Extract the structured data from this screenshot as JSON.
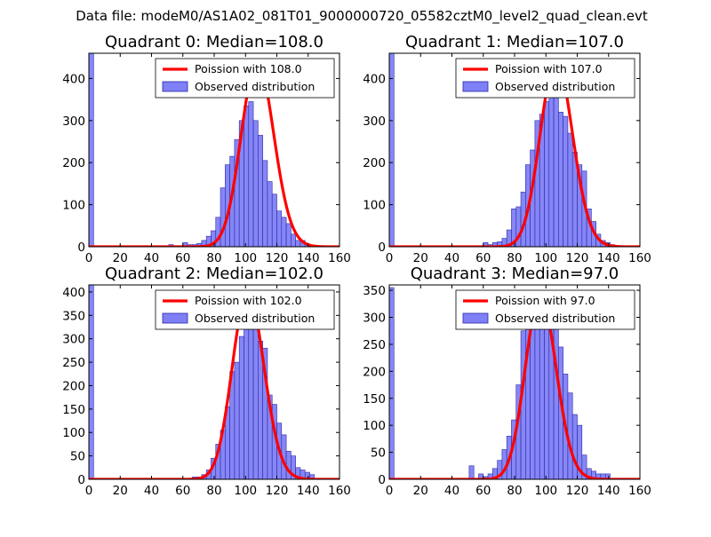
{
  "figure_title": "Data file: modeM0/AS1A02_081T01_9000000720_05582cztM0_level2_quad_clean.evt",
  "colors": {
    "poisson_line": "#ff0000",
    "bar_fill": "#7f7ff6",
    "bar_edge": "#2a2aa8"
  },
  "chart_data": [
    {
      "type": "bar",
      "title": "Quadrant 0: Median=108.0",
      "xlim": [
        0,
        160
      ],
      "ylim": [
        0,
        460
      ],
      "xticks": [
        0,
        20,
        40,
        60,
        80,
        100,
        120,
        140,
        160
      ],
      "yticks": [
        0,
        100,
        200,
        300,
        400
      ],
      "legend": {
        "position": "top-right",
        "line_label": "Poission with 108.0",
        "bar_label": "Observed distribution"
      },
      "poisson_mean": 108.0,
      "poisson_peak": 440,
      "bin_edges": [
        0,
        3,
        6,
        9,
        12,
        15,
        18,
        21,
        24,
        27,
        30,
        33,
        36,
        39,
        42,
        45,
        48,
        51,
        54,
        57,
        60,
        63,
        66,
        69,
        72,
        75,
        78,
        81,
        84,
        87,
        90,
        93,
        96,
        99,
        102,
        105,
        108,
        111,
        114,
        117,
        120,
        123,
        126,
        129,
        132,
        135,
        138,
        141,
        144,
        147,
        150,
        153,
        156,
        159
      ],
      "counts": [
        460,
        0,
        0,
        0,
        0,
        0,
        0,
        0,
        0,
        0,
        0,
        0,
        0,
        0,
        0,
        0,
        0,
        5,
        0,
        0,
        10,
        5,
        5,
        8,
        15,
        25,
        38,
        70,
        140,
        195,
        215,
        255,
        300,
        335,
        345,
        300,
        265,
        205,
        155,
        125,
        85,
        70,
        55,
        30,
        15,
        15,
        5,
        0,
        0,
        0,
        0,
        0,
        0
      ]
    },
    {
      "type": "bar",
      "title": "Quadrant 1: Median=107.0",
      "xlim": [
        0,
        160
      ],
      "ylim": [
        0,
        460
      ],
      "xticks": [
        0,
        20,
        40,
        60,
        80,
        100,
        120,
        140,
        160
      ],
      "yticks": [
        0,
        100,
        200,
        300,
        400
      ],
      "legend": {
        "position": "top-right",
        "line_label": "Poission with 107.0",
        "bar_label": "Observed distribution"
      },
      "poisson_mean": 107.0,
      "poisson_peak": 442,
      "bin_edges": [
        0,
        3,
        6,
        9,
        12,
        15,
        18,
        21,
        24,
        27,
        30,
        33,
        36,
        39,
        42,
        45,
        48,
        51,
        54,
        57,
        60,
        63,
        66,
        69,
        72,
        75,
        78,
        81,
        84,
        87,
        90,
        93,
        96,
        99,
        102,
        105,
        108,
        111,
        114,
        117,
        120,
        123,
        126,
        129,
        132,
        135,
        138,
        141,
        144,
        147,
        150,
        153,
        156,
        159
      ],
      "counts": [
        460,
        0,
        0,
        0,
        0,
        0,
        0,
        0,
        0,
        0,
        0,
        0,
        0,
        0,
        0,
        0,
        0,
        0,
        0,
        0,
        10,
        5,
        10,
        12,
        20,
        40,
        90,
        95,
        130,
        195,
        230,
        300,
        315,
        345,
        375,
        445,
        320,
        310,
        270,
        225,
        195,
        180,
        90,
        60,
        30,
        15,
        10,
        5,
        0,
        0,
        0,
        0,
        0
      ]
    },
    {
      "type": "bar",
      "title": "Quadrant 2: Median=102.0",
      "xlim": [
        0,
        160
      ],
      "ylim": [
        0,
        415
      ],
      "xticks": [
        0,
        20,
        40,
        60,
        80,
        100,
        120,
        140,
        160
      ],
      "yticks": [
        0,
        50,
        100,
        150,
        200,
        250,
        300,
        350,
        400
      ],
      "legend": {
        "position": "top-right",
        "line_label": "Poission with 102.0",
        "bar_label": "Observed distribution"
      },
      "poisson_mean": 102.0,
      "poisson_peak": 398,
      "bin_edges": [
        0,
        3,
        6,
        9,
        12,
        15,
        18,
        21,
        24,
        27,
        30,
        33,
        36,
        39,
        42,
        45,
        48,
        51,
        54,
        57,
        60,
        63,
        66,
        69,
        72,
        75,
        78,
        81,
        84,
        87,
        90,
        93,
        96,
        99,
        102,
        105,
        108,
        111,
        114,
        117,
        120,
        123,
        126,
        129,
        132,
        135,
        138,
        141,
        144,
        147,
        150,
        153,
        156,
        159
      ],
      "counts": [
        415,
        0,
        0,
        0,
        0,
        0,
        0,
        0,
        0,
        0,
        0,
        0,
        0,
        0,
        0,
        0,
        0,
        0,
        0,
        0,
        0,
        0,
        5,
        5,
        10,
        20,
        45,
        75,
        105,
        155,
        230,
        250,
        305,
        385,
        390,
        340,
        295,
        280,
        180,
        160,
        120,
        95,
        60,
        50,
        25,
        20,
        15,
        10,
        0,
        0,
        0,
        0,
        0
      ]
    },
    {
      "type": "bar",
      "title": "Quadrant 3: Median=97.0",
      "xlim": [
        0,
        160
      ],
      "ylim": [
        0,
        360
      ],
      "xticks": [
        0,
        20,
        40,
        60,
        80,
        100,
        120,
        140,
        160
      ],
      "yticks": [
        0,
        50,
        100,
        150,
        200,
        250,
        300,
        350
      ],
      "legend": {
        "position": "top-right",
        "line_label": "Poission with 97.0",
        "bar_label": "Observed distribution"
      },
      "poisson_mean": 97.0,
      "poisson_peak": 340,
      "bin_edges": [
        0,
        3,
        6,
        9,
        12,
        15,
        18,
        21,
        24,
        27,
        30,
        33,
        36,
        39,
        42,
        45,
        48,
        51,
        54,
        57,
        60,
        63,
        66,
        69,
        72,
        75,
        78,
        81,
        84,
        87,
        90,
        93,
        96,
        99,
        102,
        105,
        108,
        111,
        114,
        117,
        120,
        123,
        126,
        129,
        132,
        135,
        138,
        141,
        144,
        147,
        150,
        153,
        156,
        159
      ],
      "counts": [
        355,
        0,
        0,
        0,
        0,
        0,
        0,
        0,
        0,
        0,
        0,
        0,
        0,
        0,
        0,
        0,
        0,
        25,
        0,
        10,
        5,
        10,
        20,
        35,
        55,
        80,
        110,
        175,
        275,
        280,
        335,
        320,
        305,
        335,
        335,
        320,
        245,
        195,
        160,
        120,
        100,
        45,
        20,
        15,
        10,
        10,
        10,
        0,
        0,
        0,
        0,
        0,
        0
      ]
    }
  ]
}
